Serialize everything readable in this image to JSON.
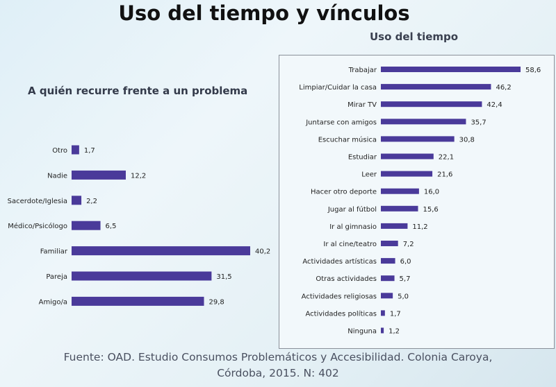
{
  "slide": {
    "title": "Uso del tiempo y vínculos",
    "footer_line1": "Fuente: OAD. Estudio Consumos Problemáticos y Accesibilidad. Colonia Caroya,",
    "footer_line2": "Córdoba, 2015. N: 402"
  },
  "colors": {
    "bar": "#4a3a9a",
    "background": "#e6f2f7"
  },
  "chart_data": [
    {
      "type": "bar",
      "orientation": "horizontal",
      "title": "A quién recurre frente a un problema",
      "categories": [
        "Otro",
        "Nadie",
        "Sacerdote/Iglesia",
        "Médico/Psicólogo",
        "Familiar",
        "Pareja",
        "Amigo/a"
      ],
      "values": [
        1.7,
        12.2,
        2.2,
        6.5,
        40.2,
        31.5,
        29.8
      ],
      "value_labels": [
        "1,7",
        "12,2",
        "2,2",
        "6,5",
        "40,2",
        "31,5",
        "29,8"
      ],
      "xlim": [
        0,
        40.2
      ],
      "grid": false,
      "legend": "none"
    },
    {
      "type": "bar",
      "orientation": "horizontal",
      "title": "Uso del tiempo",
      "categories": [
        "Trabajar",
        "Limpiar/Cuidar la casa",
        "Mirar TV",
        "Juntarse con amigos",
        "Escuchar música",
        "Estudiar",
        "Leer",
        "Hacer otro deporte",
        "Jugar al fútbol",
        "Ir al gimnasio",
        "Ir al cine/teatro",
        "Actividades artísticas",
        "Otras actividades",
        "Actividades religiosas",
        "Actividades políticas",
        "Ninguna"
      ],
      "values": [
        58.6,
        46.2,
        42.4,
        35.7,
        30.8,
        22.1,
        21.6,
        16.0,
        15.6,
        11.2,
        7.2,
        6.0,
        5.7,
        5.0,
        1.7,
        1.2
      ],
      "value_labels": [
        "58,6",
        "46,2",
        "42,4",
        "35,7",
        "30,8",
        "22,1",
        "21,6",
        "16,0",
        "15,6",
        "11,2",
        "7,2",
        "6,0",
        "5,7",
        "5,0",
        "1,7",
        "1,2"
      ],
      "xlim": [
        0,
        58.6
      ],
      "grid": false,
      "legend": "none"
    }
  ]
}
